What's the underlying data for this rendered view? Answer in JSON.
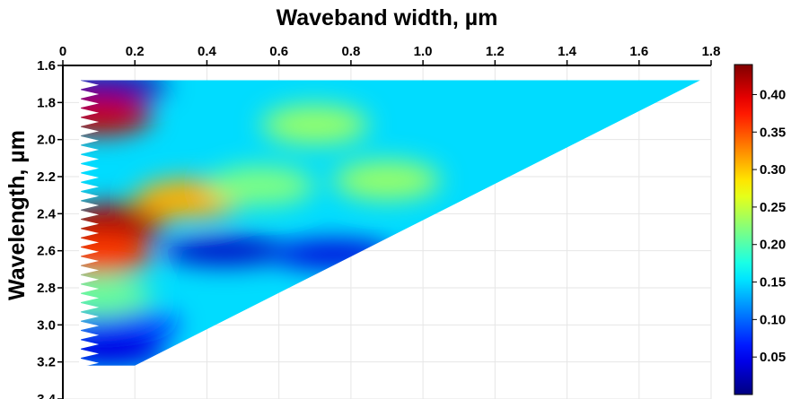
{
  "chart_data": {
    "type": "heatmap",
    "title": "",
    "xlabel": "Waveband width, µm",
    "ylabel": "Wavelength, µm",
    "x_axis_position": "top",
    "y_axis_inverted": true,
    "xlim": [
      0,
      1.8
    ],
    "ylim": [
      1.6,
      3.4
    ],
    "x_ticks": [
      "0",
      "0.2",
      "0.4",
      "0.6",
      "0.8",
      "1.0",
      "1.2",
      "1.4",
      "1.6",
      "1.8"
    ],
    "y_ticks": [
      "1.6",
      "1.8",
      "2.0",
      "2.2",
      "2.4",
      "2.6",
      "2.8",
      "3.0",
      "3.2",
      "3.4"
    ],
    "grid": true,
    "colormap": "jet",
    "colorbar": {
      "min": 0.0,
      "max": 0.44,
      "position": "right",
      "ticks": [
        "0.05",
        "0.10",
        "0.15",
        "0.20",
        "0.25",
        "0.30",
        "0.35",
        "0.40"
      ]
    },
    "region_vertices": [
      [
        0.05,
        1.68
      ],
      [
        1.77,
        1.68
      ],
      [
        0.2,
        3.22
      ],
      [
        0.05,
        3.22
      ]
    ],
    "hotspots": [
      {
        "x": 0.1,
        "y": 1.87,
        "value": 0.41
      },
      {
        "x": 0.14,
        "y": 2.45,
        "value": 0.42
      },
      {
        "x": 0.35,
        "y": 2.32,
        "value": 0.31
      },
      {
        "x": 0.1,
        "y": 2.62,
        "value": 0.36
      },
      {
        "x": 0.7,
        "y": 1.92,
        "value": 0.23
      },
      {
        "x": 0.9,
        "y": 2.22,
        "value": 0.23
      },
      {
        "x": 0.55,
        "y": 2.25,
        "value": 0.22
      },
      {
        "x": 0.1,
        "y": 2.85,
        "value": 0.21
      }
    ],
    "coldspots": [
      {
        "x": 0.12,
        "y": 1.71,
        "value": 0.02
      },
      {
        "x": 0.45,
        "y": 2.6,
        "value": 0.03
      },
      {
        "x": 0.75,
        "y": 2.62,
        "value": 0.04
      },
      {
        "x": 0.12,
        "y": 3.15,
        "value": 0.04
      },
      {
        "x": 0.15,
        "y": 3.0,
        "value": 0.06
      }
    ],
    "background_value": 0.15
  }
}
